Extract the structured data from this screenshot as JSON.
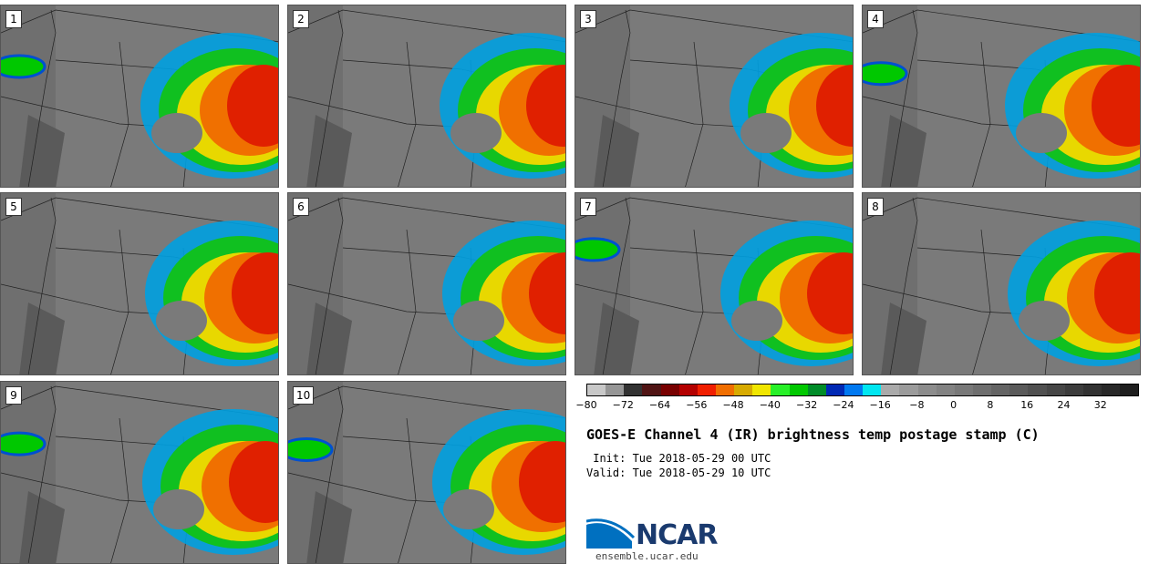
{
  "panels": [
    {
      "label": "1"
    },
    {
      "label": "2"
    },
    {
      "label": "3"
    },
    {
      "label": "4"
    },
    {
      "label": "5"
    },
    {
      "label": "6"
    },
    {
      "label": "7"
    },
    {
      "label": "8"
    },
    {
      "label": "9"
    },
    {
      "label": "10"
    }
  ],
  "colorbar": {
    "colors": [
      "#c8c8c8",
      "#969696",
      "#323232",
      "#501414",
      "#780000",
      "#b40000",
      "#f01e00",
      "#f06e00",
      "#d7aa00",
      "#f0e600",
      "#28f028",
      "#00c800",
      "#008c28",
      "#0028b4",
      "#0078f0",
      "#00e6f0",
      "#aaaaaa",
      "#9b9b9b",
      "#8c8c8c",
      "#828282",
      "#787878",
      "#6e6e6e",
      "#646464",
      "#5a5a5a",
      "#505050",
      "#464646",
      "#3c3c3c",
      "#323232",
      "#282828",
      "#1e1e1e"
    ],
    "ticks": [
      "−80",
      "−72",
      "−64",
      "−56",
      "−48",
      "−40",
      "−32",
      "−24",
      "−16",
      "−8",
      "0",
      "8",
      "16",
      "24",
      "32"
    ]
  },
  "title": "GOES-E Channel 4 (IR) brightness temp postage stamp (C)",
  "init": " Init: Tue 2018-05-29 00 UTC",
  "valid": "Valid: Tue 2018-05-29 10 UTC",
  "logo": {
    "text": "NCAR",
    "site": "ensemble.ucar.edu",
    "colors": {
      "swoosh": "#0070c0",
      "text": "#1a3a6e"
    }
  }
}
